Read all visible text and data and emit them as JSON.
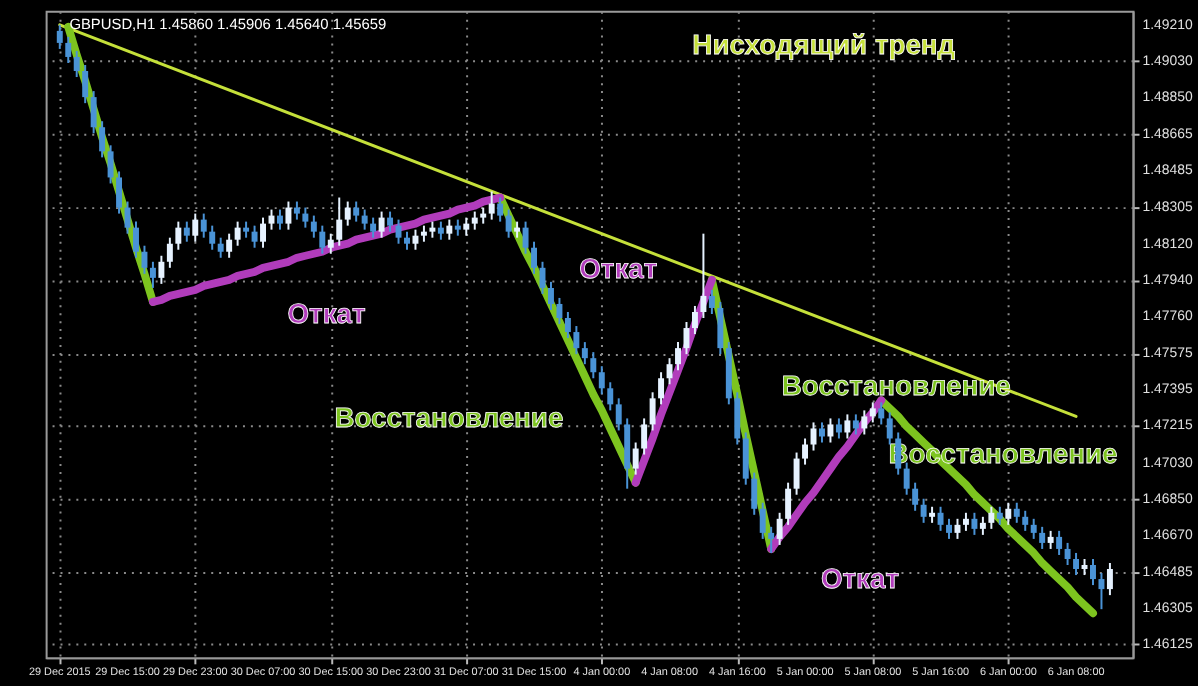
{
  "chart_data": {
    "type": "candlestick",
    "title": "GBPUSD,H1  1.45860 1.45906 1.45640 1.45659",
    "categories": [
      "29 Dec 2015",
      null,
      null,
      null,
      null,
      null,
      null,
      null,
      "29 Dec 15:00",
      null,
      null,
      null,
      null,
      null,
      null,
      null,
      "29 Dec 23:00",
      null,
      null,
      null,
      null,
      null,
      null,
      null,
      "30 Dec 07:00",
      null,
      null,
      null,
      null,
      null,
      null,
      null,
      "30 Dec 15:00",
      null,
      null,
      null,
      null,
      null,
      null,
      null,
      "30 Dec 23:00",
      null,
      null,
      null,
      null,
      null,
      null,
      null,
      "31 Dec 07:00",
      null,
      null,
      null,
      null,
      null,
      null,
      null,
      "31 Dec 15:00",
      null,
      null,
      null,
      null,
      null,
      null,
      null,
      "4 Jan 00:00",
      null,
      null,
      null,
      null,
      null,
      null,
      null,
      "4 Jan 08:00",
      null,
      null,
      null,
      null,
      null,
      null,
      null,
      "4 Jan 16:00",
      null,
      null,
      null,
      null,
      null,
      null,
      null,
      "5 Jan 00:00",
      null,
      null,
      null,
      null,
      null,
      null,
      null,
      "5 Jan 08:00",
      null,
      null,
      null,
      null,
      null,
      null,
      null,
      "5 Jan 16:00",
      null,
      null,
      null,
      null,
      null,
      null,
      null,
      "6 Jan 00:00",
      null,
      null,
      null,
      null,
      null,
      null,
      null,
      "6 Jan 08:00",
      null,
      null,
      null,
      null
    ],
    "ohlc": [
      [
        1.4918,
        1.4921,
        1.4909,
        1.4912
      ],
      [
        1.4912,
        1.4915,
        1.4902,
        1.4905
      ],
      [
        1.4905,
        1.4908,
        1.4895,
        1.4898
      ],
      [
        1.4898,
        1.4901,
        1.4882,
        1.4885
      ],
      [
        1.4885,
        1.4888,
        1.4867,
        1.487
      ],
      [
        1.487,
        1.4873,
        1.4855,
        1.4858
      ],
      [
        1.4858,
        1.4861,
        1.4842,
        1.4845
      ],
      [
        1.4845,
        1.4848,
        1.4827,
        1.483
      ],
      [
        1.483,
        1.4833,
        1.4817,
        1.482
      ],
      [
        1.482,
        1.4823,
        1.4805,
        1.4808
      ],
      [
        1.4808,
        1.4811,
        1.4797,
        1.48
      ],
      [
        1.48,
        1.4803,
        1.479,
        1.4795
      ],
      [
        1.4795,
        1.4806,
        1.4792,
        1.4803
      ],
      [
        1.4803,
        1.4815,
        1.48,
        1.4812
      ],
      [
        1.4812,
        1.4823,
        1.4809,
        1.482
      ],
      [
        1.482,
        1.4823,
        1.4813,
        1.4816
      ],
      [
        1.4816,
        1.4827,
        1.4813,
        1.4824
      ],
      [
        1.4824,
        1.4827,
        1.4815,
        1.4818
      ],
      [
        1.4818,
        1.4821,
        1.4809,
        1.4812
      ],
      [
        1.4812,
        1.4815,
        1.4805,
        1.4808
      ],
      [
        1.4808,
        1.4817,
        1.4805,
        1.4814
      ],
      [
        1.4814,
        1.4823,
        1.4811,
        1.482
      ],
      [
        1.482,
        1.4823,
        1.4815,
        1.4818
      ],
      [
        1.4818,
        1.4821,
        1.481,
        1.4813
      ],
      [
        1.4813,
        1.4825,
        1.481,
        1.4822
      ],
      [
        1.4822,
        1.4829,
        1.4819,
        1.4826
      ],
      [
        1.4826,
        1.4829,
        1.4819,
        1.4822
      ],
      [
        1.4822,
        1.4833,
        1.4819,
        1.483
      ],
      [
        1.483,
        1.4833,
        1.4824,
        1.4827
      ],
      [
        1.4827,
        1.483,
        1.482,
        1.4823
      ],
      [
        1.4823,
        1.4826,
        1.4815,
        1.4818
      ],
      [
        1.4818,
        1.4821,
        1.4807,
        1.481
      ],
      [
        1.481,
        1.4817,
        1.4807,
        1.4814
      ],
      [
        1.4814,
        1.4835,
        1.4811,
        1.4824
      ],
      [
        1.4824,
        1.4833,
        1.4821,
        1.483
      ],
      [
        1.483,
        1.4833,
        1.4823,
        1.4826
      ],
      [
        1.4826,
        1.4829,
        1.4819,
        1.4822
      ],
      [
        1.4822,
        1.4825,
        1.4815,
        1.4818
      ],
      [
        1.4818,
        1.4828,
        1.4815,
        1.4825
      ],
      [
        1.4825,
        1.4828,
        1.4818,
        1.4821
      ],
      [
        1.4821,
        1.4824,
        1.4812,
        1.4815
      ],
      [
        1.4815,
        1.4818,
        1.4809,
        1.4812
      ],
      [
        1.4812,
        1.4819,
        1.4809,
        1.4816
      ],
      [
        1.4816,
        1.4821,
        1.4813,
        1.4818
      ],
      [
        1.4818,
        1.4823,
        1.4815,
        1.482
      ],
      [
        1.482,
        1.4823,
        1.4814,
        1.4817
      ],
      [
        1.4817,
        1.4824,
        1.4814,
        1.4821
      ],
      [
        1.4821,
        1.4824,
        1.4816,
        1.4819
      ],
      [
        1.4819,
        1.4825,
        1.4816,
        1.4822
      ],
      [
        1.4822,
        1.4828,
        1.4819,
        1.4825
      ],
      [
        1.4825,
        1.483,
        1.4822,
        1.4827
      ],
      [
        1.4827,
        1.4838,
        1.4824,
        1.4832
      ],
      [
        1.4832,
        1.4835,
        1.4823,
        1.4826
      ],
      [
        1.4826,
        1.4829,
        1.4815,
        1.4818
      ],
      [
        1.4818,
        1.4823,
        1.4815,
        1.482
      ],
      [
        1.482,
        1.4823,
        1.4807,
        1.481
      ],
      [
        1.481,
        1.4813,
        1.4797,
        1.48
      ],
      [
        1.48,
        1.4803,
        1.4787,
        1.479
      ],
      [
        1.479,
        1.4793,
        1.4779,
        1.4782
      ],
      [
        1.4782,
        1.4785,
        1.4772,
        1.4775
      ],
      [
        1.4775,
        1.4778,
        1.4765,
        1.4768
      ],
      [
        1.4768,
        1.4771,
        1.4757,
        1.476
      ],
      [
        1.476,
        1.4763,
        1.4752,
        1.4755
      ],
      [
        1.4755,
        1.4758,
        1.4745,
        1.4748
      ],
      [
        1.4748,
        1.4751,
        1.4737,
        1.474
      ],
      [
        1.474,
        1.4743,
        1.4729,
        1.4732
      ],
      [
        1.4732,
        1.4735,
        1.4719,
        1.4722
      ],
      [
        1.4722,
        1.4725,
        1.469,
        1.47
      ],
      [
        1.47,
        1.4713,
        1.4697,
        1.471
      ],
      [
        1.471,
        1.4725,
        1.4707,
        1.4722
      ],
      [
        1.4722,
        1.4738,
        1.4719,
        1.4735
      ],
      [
        1.4735,
        1.4748,
        1.4732,
        1.4745
      ],
      [
        1.4745,
        1.4755,
        1.4742,
        1.4752
      ],
      [
        1.4752,
        1.4763,
        1.4749,
        1.476
      ],
      [
        1.476,
        1.4773,
        1.4757,
        1.477
      ],
      [
        1.477,
        1.4781,
        1.4767,
        1.4778
      ],
      [
        1.4778,
        1.4817,
        1.4775,
        1.4786
      ],
      [
        1.4786,
        1.4789,
        1.4777,
        1.478
      ],
      [
        1.478,
        1.4783,
        1.4757,
        1.476
      ],
      [
        1.476,
        1.4763,
        1.4732,
        1.4735
      ],
      [
        1.4735,
        1.4738,
        1.4712,
        1.4715
      ],
      [
        1.4715,
        1.4718,
        1.4692,
        1.4695
      ],
      [
        1.4695,
        1.4698,
        1.4677,
        1.468
      ],
      [
        1.468,
        1.4683,
        1.4665,
        1.4668
      ],
      [
        1.4668,
        1.4671,
        1.4658,
        1.4665
      ],
      [
        1.4665,
        1.4678,
        1.4662,
        1.4675
      ],
      [
        1.4675,
        1.4693,
        1.4672,
        1.469
      ],
      [
        1.469,
        1.4708,
        1.4687,
        1.4705
      ],
      [
        1.4705,
        1.4715,
        1.4702,
        1.4712
      ],
      [
        1.4712,
        1.4723,
        1.4709,
        1.472
      ],
      [
        1.472,
        1.4723,
        1.4713,
        1.4716
      ],
      [
        1.4716,
        1.4725,
        1.4713,
        1.4722
      ],
      [
        1.4722,
        1.4725,
        1.4715,
        1.4718
      ],
      [
        1.4718,
        1.4727,
        1.4715,
        1.4724
      ],
      [
        1.4724,
        1.4727,
        1.4717,
        1.472
      ],
      [
        1.472,
        1.4729,
        1.4717,
        1.4726
      ],
      [
        1.4726,
        1.4733,
        1.4723,
        1.473
      ],
      [
        1.473,
        1.4733,
        1.4722,
        1.4725
      ],
      [
        1.4725,
        1.4728,
        1.4712,
        1.4715
      ],
      [
        1.4715,
        1.4718,
        1.4697,
        1.47
      ],
      [
        1.47,
        1.4703,
        1.4687,
        1.469
      ],
      [
        1.469,
        1.4693,
        1.4679,
        1.4682
      ],
      [
        1.4682,
        1.4685,
        1.4673,
        1.4676
      ],
      [
        1.4676,
        1.4681,
        1.4673,
        1.4678
      ],
      [
        1.4678,
        1.4681,
        1.4669,
        1.4672
      ],
      [
        1.4672,
        1.4675,
        1.4665,
        1.4668
      ],
      [
        1.4668,
        1.4675,
        1.4665,
        1.4672
      ],
      [
        1.4672,
        1.4678,
        1.4669,
        1.4675
      ],
      [
        1.4675,
        1.4678,
        1.4667,
        1.467
      ],
      [
        1.467,
        1.4676,
        1.4667,
        1.4673
      ],
      [
        1.4673,
        1.4681,
        1.467,
        1.4678
      ],
      [
        1.4678,
        1.4681,
        1.4672,
        1.4675
      ],
      [
        1.4675,
        1.4683,
        1.4672,
        1.468
      ],
      [
        1.468,
        1.4683,
        1.4673,
        1.4676
      ],
      [
        1.4676,
        1.4679,
        1.4669,
        1.4672
      ],
      [
        1.4672,
        1.4675,
        1.4665,
        1.4668
      ],
      [
        1.4668,
        1.4671,
        1.466,
        1.4663
      ],
      [
        1.4663,
        1.4669,
        1.466,
        1.4666
      ],
      [
        1.4666,
        1.4669,
        1.4657,
        1.466
      ],
      [
        1.466,
        1.4663,
        1.4652,
        1.4655
      ],
      [
        1.4655,
        1.4658,
        1.4647,
        1.465
      ],
      [
        1.465,
        1.4655,
        1.4647,
        1.4652
      ],
      [
        1.4652,
        1.4655,
        1.4642,
        1.4645
      ],
      [
        1.4645,
        1.4648,
        1.463,
        1.464
      ],
      [
        1.464,
        1.4653,
        1.4637,
        1.465
      ]
    ],
    "series": [
      {
        "type": "line",
        "name": "Нисходящий тренд",
        "color": "#c5e03a",
        "x": [
          "29 Dec 2015",
          "6 Jan 08:00"
        ],
        "values": [
          1.4921,
          1.4726
        ]
      },
      {
        "type": "line",
        "name": "Восстановление",
        "color": "#7dc41f",
        "values": [
          null,
          1.492,
          1.4906,
          1.4893,
          1.4879,
          1.4865,
          1.4852,
          1.4838,
          1.4824,
          1.481,
          1.4797,
          1.4783,
          null,
          null,
          null,
          null,
          null,
          null,
          null,
          null,
          null,
          null,
          null,
          null,
          null,
          null,
          null,
          null,
          null,
          null,
          null,
          null,
          null,
          null,
          null,
          null,
          null,
          null,
          null,
          null,
          null,
          null,
          null,
          null,
          null,
          null,
          null,
          null,
          null,
          null,
          null,
          null,
          1.4835,
          1.4826,
          1.4817,
          1.4808,
          1.48,
          1.4791,
          1.4782,
          1.4773,
          1.4764,
          1.4755,
          1.4746,
          1.4737,
          1.4729,
          1.472,
          1.4711,
          1.4702,
          1.4693,
          null,
          null,
          null,
          null,
          null,
          null,
          null,
          null,
          1.4794,
          1.4775,
          1.4756,
          1.4737,
          1.4717,
          1.4698,
          1.4679,
          1.466,
          null,
          null,
          null,
          null,
          null,
          null,
          null,
          null,
          null,
          null,
          null,
          null,
          1.4734,
          1.473,
          1.4726,
          1.4721,
          1.4717,
          1.4713,
          1.4709,
          1.4704,
          1.47,
          1.4696,
          1.4692,
          1.4687,
          1.4683,
          1.4679,
          1.4675,
          1.467,
          1.4666,
          1.4662,
          1.4658,
          1.4653,
          1.4649,
          1.4645,
          1.4641,
          1.4636,
          1.4632,
          1.4628,
          null,
          null
        ]
      },
      {
        "type": "line",
        "name": "Откат",
        "color": "#b13cbb",
        "values": [
          null,
          null,
          null,
          null,
          null,
          null,
          null,
          null,
          null,
          null,
          null,
          1.4783,
          1.4784,
          1.4786,
          1.4787,
          1.4788,
          1.4789,
          1.4791,
          1.4792,
          1.4793,
          1.4794,
          1.4796,
          1.4797,
          1.4798,
          1.48,
          1.4801,
          1.4802,
          1.4803,
          1.4805,
          1.4806,
          1.4807,
          1.4808,
          1.481,
          1.4811,
          1.4812,
          1.4814,
          1.4815,
          1.4816,
          1.4817,
          1.4819,
          1.482,
          1.4821,
          1.4822,
          1.4824,
          1.4825,
          1.4826,
          1.4827,
          1.4829,
          1.483,
          1.4831,
          1.4833,
          1.4834,
          1.4835,
          null,
          null,
          null,
          null,
          null,
          null,
          null,
          null,
          null,
          null,
          null,
          null,
          null,
          null,
          null,
          1.4693,
          1.4704,
          1.4715,
          1.4727,
          1.4738,
          1.4749,
          1.476,
          1.4772,
          1.4783,
          1.4794,
          null,
          null,
          null,
          null,
          null,
          null,
          1.466,
          1.4666,
          1.4671,
          1.4677,
          1.4683,
          1.4688,
          1.4694,
          1.47,
          1.4706,
          1.4711,
          1.4717,
          1.4723,
          1.4728,
          1.4734,
          null,
          null,
          null,
          null,
          null,
          null,
          null,
          null,
          null,
          null,
          null,
          null,
          null,
          null,
          null,
          null,
          null,
          null,
          null,
          null,
          null,
          null,
          null,
          null,
          null,
          null,
          null
        ]
      }
    ],
    "ylim": [
      1.4606,
      1.4928
    ],
    "yticks": [
      {
        "value": 1.4921,
        "label": "1.49210"
      },
      {
        "value": 1.4903,
        "label": "1.49030"
      },
      {
        "value": 1.4885,
        "label": "1.48850"
      },
      1.48665,
      1.48485,
      1.48305,
      {
        "value": 1.4812,
        "label": "1.48120"
      },
      {
        "value": 1.4794,
        "label": "1.47940"
      },
      {
        "value": 1.4776,
        "label": "1.47760"
      },
      1.47575,
      1.47395,
      1.47215,
      {
        "value": 1.4703,
        "label": "1.47030"
      },
      {
        "value": 1.4685,
        "label": "1.46850"
      },
      {
        "value": 1.4667,
        "label": "1.46670"
      },
      1.46485,
      1.46305,
      1.46125
    ],
    "grid": true
  }
}
